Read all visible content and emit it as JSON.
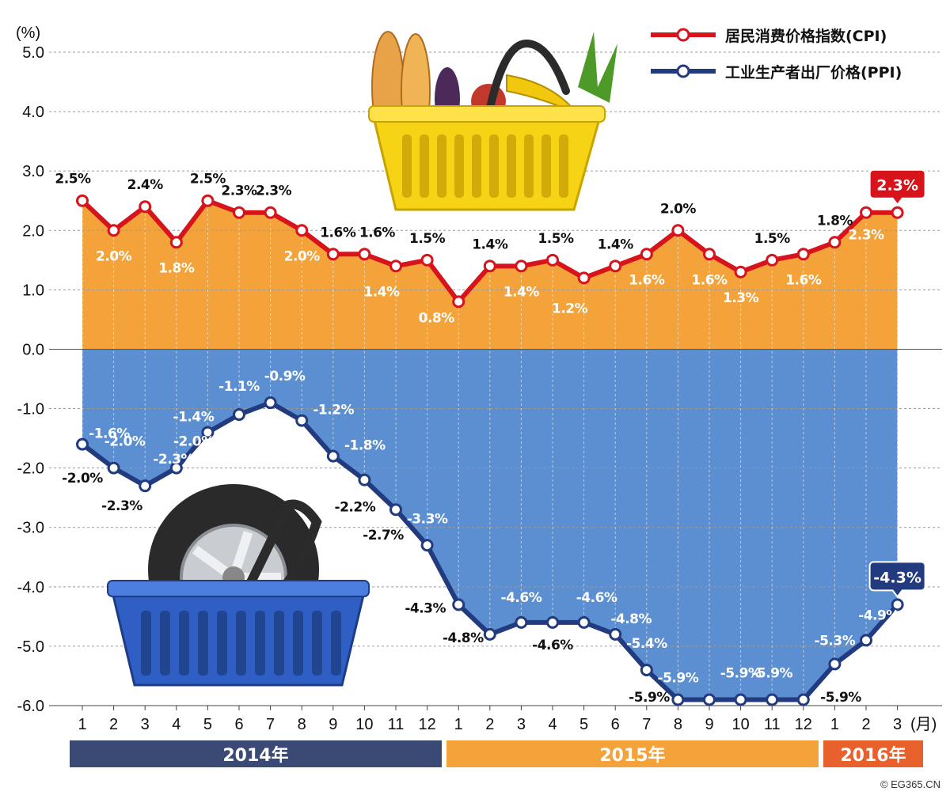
{
  "chart_data": {
    "type": "line",
    "unit_label": "(%)",
    "month_unit": "(月)",
    "ylim": [
      -6.0,
      5.0
    ],
    "yticks": [
      "5.0",
      "4.0",
      "3.0",
      "2.0",
      "1.0",
      "0.0",
      "-1.0",
      "-2.0",
      "-3.0",
      "-4.0",
      "-5.0",
      "-6.0"
    ],
    "categories": [
      "1",
      "2",
      "3",
      "4",
      "5",
      "6",
      "7",
      "8",
      "9",
      "10",
      "11",
      "12",
      "1",
      "2",
      "3",
      "4",
      "5",
      "6",
      "7",
      "8",
      "9",
      "10",
      "11",
      "12",
      "1",
      "2",
      "3"
    ],
    "series": [
      {
        "name": "居民消费价格指数(CPI)",
        "color": "#d7141b",
        "fill": "#f4a23a",
        "values": [
          2.5,
          2.0,
          2.4,
          1.8,
          2.5,
          2.3,
          2.3,
          2.0,
          1.6,
          1.6,
          1.4,
          1.5,
          0.8,
          1.4,
          1.4,
          1.5,
          1.2,
          1.4,
          1.6,
          2.0,
          1.6,
          1.3,
          1.5,
          1.6,
          1.8,
          2.3,
          2.3
        ],
        "labels": [
          "2.5%",
          "2.0%",
          "2.4%",
          "1.8%",
          "2.5%",
          "2.3%",
          "2.3%",
          "2.0%",
          "1.6%",
          "1.6%",
          "1.4%",
          "1.5%",
          "0.8%",
          "1.4%",
          "1.4%",
          "1.5%",
          "1.2%",
          "1.4%",
          "1.6%",
          "2.0%",
          "1.6%",
          "1.3%",
          "1.5%",
          "1.6%",
          "1.8%",
          "2.3%",
          "2.3%"
        ]
      },
      {
        "name": "工业生产者出厂价格(PPI)",
        "color": "#213b7e",
        "fill": "#5b8fd1",
        "values": [
          -1.6,
          -2.0,
          -2.3,
          -2.0,
          -1.4,
          -1.1,
          -0.9,
          -1.2,
          -1.8,
          -2.2,
          -2.7,
          -3.3,
          -4.3,
          -4.8,
          -4.6,
          -4.6,
          -4.6,
          -4.8,
          -5.4,
          -5.9,
          -5.9,
          -5.9,
          -5.9,
          -5.9,
          -5.3,
          -4.9,
          -4.3
        ],
        "labels": [
          "-1.6%",
          "-2.0%",
          "-2.3%",
          "-2.0%",
          "-1.4%",
          "-1.1%",
          "-0.9%",
          "-1.2%",
          "-1.8%",
          "-2.2%",
          "-2.7%",
          "-3.3%",
          "-4.3%",
          "-4.8%",
          "-4.6%",
          "-4.6%",
          "-4.6%",
          "-4.8%",
          "-5.4%",
          "-5.9%",
          "-5.9%",
          "-5.9%",
          "-5.9%",
          "-5.9%",
          "-5.3%",
          "-4.9%",
          "-4.3%"
        ]
      }
    ],
    "extra_labels": {
      "ppi_spur": [
        "-2.0%",
        "-2.3%"
      ],
      "cpi_callout": "2.3%",
      "ppi_callout": "-4.3%"
    },
    "years": [
      {
        "label": "2014年",
        "color": "#3a4a75"
      },
      {
        "label": "2015年",
        "color": "#f4a23a"
      },
      {
        "label": "2016年",
        "color": "#e8602c"
      }
    ],
    "grid": true,
    "legend_position": "top-right"
  },
  "credit": "© EG365.CN"
}
